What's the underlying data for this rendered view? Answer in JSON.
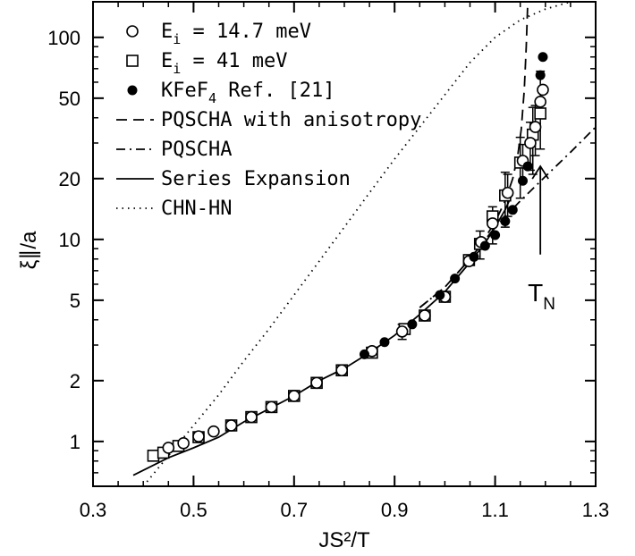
{
  "chart_data": {
    "type": "scatter",
    "xlabel": "JS²/T",
    "ylabel": "ξ∥/a",
    "xlim": [
      0.3,
      1.3
    ],
    "ylim": [
      0.6,
      150
    ],
    "yscale": "log",
    "xticks": [
      0.3,
      0.5,
      0.7,
      0.9,
      1.1,
      1.3
    ],
    "xtick_labels": [
      "0.3",
      "0.5",
      "0.7",
      "0.9",
      "1.1",
      "1.3"
    ],
    "yticks": [
      1,
      2,
      5,
      10,
      20,
      50,
      100
    ],
    "ytick_labels": [
      "1",
      "2",
      "5",
      "10",
      "20",
      "50",
      "100"
    ],
    "grid": false,
    "legend_position": "top-left",
    "series": [
      {
        "name": "E_i = 14.7 meV",
        "legend_main": "E",
        "legend_sub": "i",
        "legend_rest": " = 14.7 meV",
        "marker": "open-circle",
        "points": [
          [
            0.45,
            0.93
          ],
          [
            0.48,
            0.98
          ],
          [
            0.51,
            1.06
          ],
          [
            0.54,
            1.12
          ],
          [
            0.575,
            1.2
          ],
          [
            0.615,
            1.32
          ],
          [
            0.655,
            1.48
          ],
          [
            0.7,
            1.68
          ],
          [
            0.745,
            1.95
          ],
          [
            0.795,
            2.25
          ],
          [
            0.855,
            2.8
          ],
          [
            0.915,
            3.5
          ],
          [
            0.96,
            4.2
          ],
          [
            1.0,
            5.2
          ],
          [
            1.048,
            7.8
          ],
          [
            1.072,
            9.7
          ],
          [
            1.095,
            12.0
          ],
          [
            1.125,
            17.0
          ],
          [
            1.155,
            24.5
          ],
          [
            1.17,
            30.0
          ],
          [
            1.18,
            36.0
          ],
          [
            1.19,
            48.0
          ],
          [
            1.195,
            55.0
          ]
        ],
        "errors": [
          [
            0.845,
            0.6
          ],
          [
            0.915,
            0.3
          ],
          [
            1.095,
            2.5
          ],
          [
            1.125,
            4.0
          ],
          [
            1.155,
            5.0
          ],
          [
            1.17,
            8.0
          ],
          [
            1.18,
            10.0
          ],
          [
            1.19,
            20.0
          ]
        ]
      },
      {
        "name": "E_i = 41 meV",
        "legend_main": "E",
        "legend_sub": "i",
        "legend_rest": " = 41 meV",
        "marker": "open-square",
        "points": [
          [
            0.42,
            0.85
          ],
          [
            0.44,
            0.88
          ],
          [
            0.47,
            0.95
          ],
          [
            0.51,
            1.05
          ],
          [
            0.575,
            1.2
          ],
          [
            0.615,
            1.32
          ],
          [
            0.655,
            1.48
          ],
          [
            0.7,
            1.68
          ],
          [
            0.745,
            1.95
          ],
          [
            0.795,
            2.25
          ],
          [
            0.855,
            2.75
          ],
          [
            0.92,
            3.6
          ],
          [
            0.96,
            4.2
          ],
          [
            1.0,
            5.2
          ],
          [
            1.048,
            7.9
          ],
          [
            1.07,
            9.5
          ],
          [
            1.095,
            13.0
          ],
          [
            1.12,
            16.5
          ],
          [
            1.15,
            24.0
          ],
          [
            1.175,
            33.0
          ],
          [
            1.19,
            42.0
          ]
        ],
        "errors": [
          [
            0.84,
            0.7
          ],
          [
            0.88,
            0.8
          ],
          [
            0.935,
            0.8
          ],
          [
            1.07,
            1.5
          ],
          [
            1.12,
            5.0
          ],
          [
            1.15,
            8.0
          ],
          [
            1.175,
            12.0
          ]
        ]
      },
      {
        "name": "KFeF4 Ref. [21]",
        "legend_main": "KFeF",
        "legend_sub": "4",
        "legend_rest": " Ref. [21]",
        "marker": "filled-circle",
        "points": [
          [
            0.84,
            2.7
          ],
          [
            0.88,
            3.1
          ],
          [
            0.935,
            3.8
          ],
          [
            0.99,
            5.3
          ],
          [
            1.02,
            6.4
          ],
          [
            1.058,
            8.2
          ],
          [
            1.08,
            9.3
          ],
          [
            1.1,
            10.5
          ],
          [
            1.12,
            12.3
          ],
          [
            1.135,
            14.0
          ],
          [
            1.155,
            19.5
          ],
          [
            1.165,
            23.0
          ],
          [
            1.19,
            65.0
          ],
          [
            1.195,
            80.0
          ]
        ]
      },
      {
        "name": "PQSCHA with anisotropy",
        "line": "dashed",
        "curve": [
          [
            0.95,
            4.6
          ],
          [
            1.0,
            5.8
          ],
          [
            1.05,
            8.0
          ],
          [
            1.08,
            10.2
          ],
          [
            1.1,
            12.2
          ],
          [
            1.12,
            15.5
          ],
          [
            1.135,
            20.0
          ],
          [
            1.145,
            26.0
          ],
          [
            1.152,
            35.0
          ],
          [
            1.158,
            55.0
          ],
          [
            1.162,
            90.0
          ],
          [
            1.165,
            150.0
          ]
        ]
      },
      {
        "name": "PQSCHA",
        "line": "dashdot",
        "curve": [
          [
            0.95,
            4.6
          ],
          [
            1.0,
            5.8
          ],
          [
            1.05,
            8.0
          ],
          [
            1.1,
            11.5
          ],
          [
            1.15,
            15.5
          ],
          [
            1.2,
            20.5
          ],
          [
            1.25,
            27.0
          ],
          [
            1.3,
            36.0
          ]
        ]
      },
      {
        "name": "Series Expansion",
        "line": "solid",
        "curve": [
          [
            0.38,
            0.68
          ],
          [
            0.45,
            0.83
          ],
          [
            0.5,
            0.93
          ],
          [
            0.55,
            1.05
          ],
          [
            0.6,
            1.25
          ],
          [
            0.65,
            1.45
          ],
          [
            0.7,
            1.68
          ],
          [
            0.75,
            2.0
          ],
          [
            0.8,
            2.3
          ],
          [
            0.85,
            2.75
          ],
          [
            0.9,
            3.35
          ],
          [
            0.95,
            4.25
          ],
          [
            1.0,
            5.5
          ],
          [
            1.05,
            7.7
          ],
          [
            1.08,
            9.6
          ],
          [
            1.1,
            11.5
          ],
          [
            1.12,
            14.0
          ],
          [
            1.135,
            17.0
          ]
        ]
      },
      {
        "name": "CHN-HN",
        "line": "dotted",
        "curve": [
          [
            0.4,
            0.6
          ],
          [
            0.45,
            0.85
          ],
          [
            0.5,
            1.2
          ],
          [
            0.55,
            1.7
          ],
          [
            0.6,
            2.5
          ],
          [
            0.65,
            3.6
          ],
          [
            0.7,
            5.3
          ],
          [
            0.75,
            7.8
          ],
          [
            0.8,
            11.5
          ],
          [
            0.85,
            17.0
          ],
          [
            0.9,
            25.0
          ],
          [
            0.95,
            36.0
          ],
          [
            1.0,
            52.0
          ],
          [
            1.05,
            75.0
          ],
          [
            1.1,
            100.0
          ],
          [
            1.15,
            122.0
          ],
          [
            1.2,
            138.0
          ],
          [
            1.25,
            150.0
          ]
        ]
      }
    ],
    "annotations": [
      {
        "text_main": "T",
        "text_sub": "N",
        "arrow_x": 1.19,
        "arrow_from_y": 14.0,
        "arrow_to_y": 23.0
      }
    ]
  }
}
